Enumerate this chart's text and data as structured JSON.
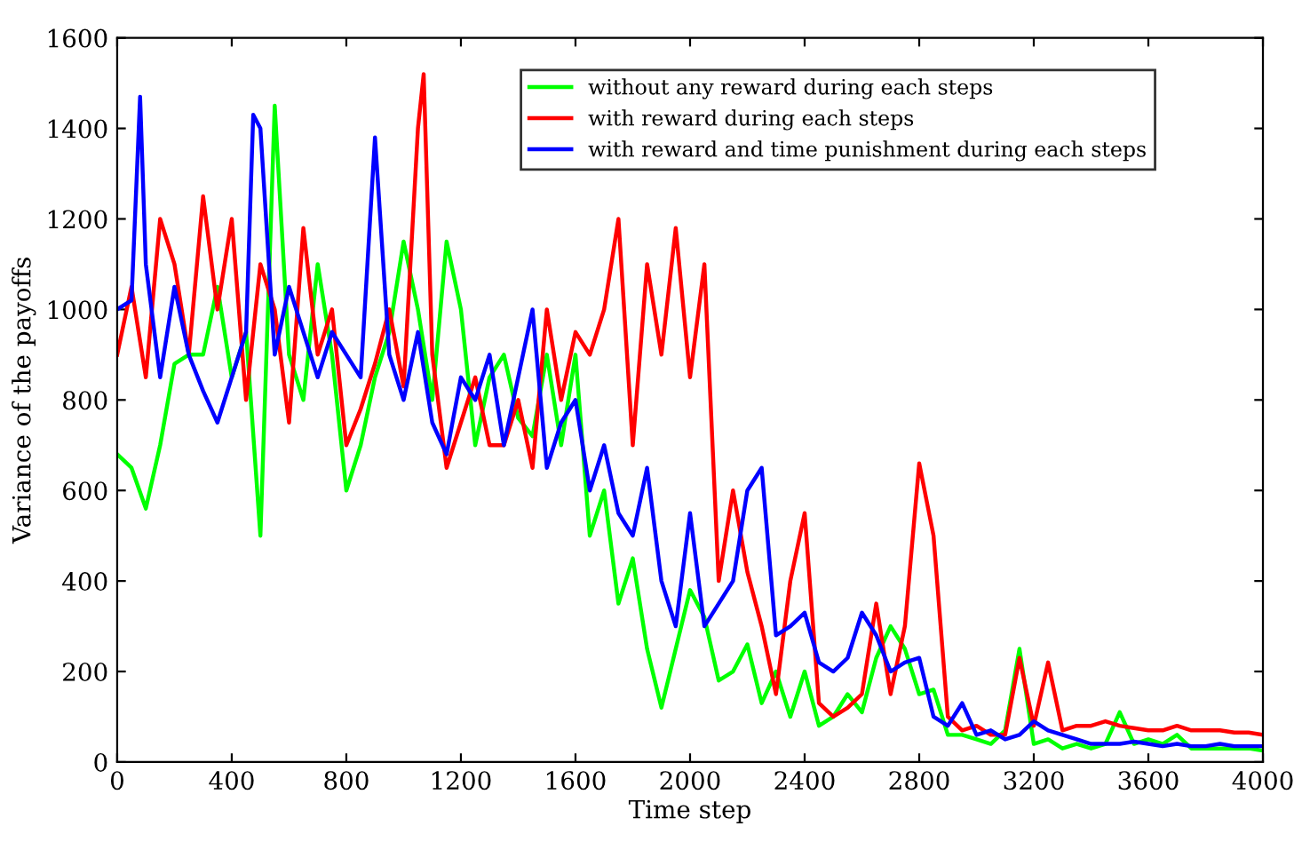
{
  "chart_data": {
    "type": "line",
    "xlabel": "Time step",
    "ylabel": "Variance of the payoffs",
    "xlim": [
      0,
      4000
    ],
    "xticks": [
      0,
      400,
      800,
      1200,
      1600,
      2000,
      2400,
      2800,
      3200,
      3600,
      4000
    ],
    "ylim": [
      0,
      1600
    ],
    "yticks": [
      0,
      200,
      400,
      600,
      800,
      1000,
      1200,
      1400,
      1600
    ],
    "grid": false,
    "legend": "top right",
    "marker": "none",
    "line_style": "solid",
    "series": [
      {
        "name": "without any reward during each steps",
        "color": "#00ff00",
        "x": [
          0,
          50,
          100,
          150,
          200,
          250,
          300,
          350,
          400,
          450,
          500,
          550,
          600,
          650,
          700,
          750,
          800,
          850,
          900,
          950,
          1000,
          1050,
          1100,
          1150,
          1200,
          1250,
          1300,
          1350,
          1400,
          1450,
          1500,
          1550,
          1600,
          1650,
          1700,
          1750,
          1800,
          1850,
          1900,
          1950,
          2000,
          2050,
          2100,
          2150,
          2200,
          2250,
          2300,
          2350,
          2400,
          2450,
          2500,
          2550,
          2600,
          2650,
          2700,
          2750,
          2800,
          2850,
          2900,
          2950,
          3000,
          3050,
          3100,
          3150,
          3200,
          3250,
          3300,
          3350,
          3400,
          3450,
          3500,
          3550,
          3600,
          3650,
          3700,
          3750,
          3800,
          3850,
          3900,
          3950,
          4000
        ],
        "values": [
          680,
          650,
          560,
          700,
          880,
          900,
          900,
          1050,
          850,
          950,
          500,
          1450,
          900,
          800,
          1100,
          900,
          600,
          700,
          850,
          950,
          1150,
          1000,
          800,
          1150,
          1000,
          700,
          850,
          900,
          760,
          720,
          900,
          700,
          900,
          500,
          600,
          350,
          450,
          250,
          120,
          250,
          380,
          320,
          180,
          200,
          260,
          130,
          200,
          100,
          200,
          80,
          100,
          150,
          110,
          230,
          300,
          250,
          150,
          160,
          60,
          60,
          50,
          40,
          70,
          250,
          40,
          50,
          30,
          40,
          30,
          40,
          110,
          40,
          50,
          40,
          60,
          30,
          30,
          30,
          30,
          30,
          25
        ]
      },
      {
        "name": "with reward during each steps",
        "color": "#ff0000",
        "x": [
          0,
          50,
          100,
          150,
          200,
          250,
          300,
          350,
          400,
          450,
          500,
          550,
          600,
          650,
          700,
          750,
          800,
          850,
          900,
          950,
          1000,
          1050,
          1070,
          1100,
          1150,
          1200,
          1250,
          1300,
          1350,
          1400,
          1450,
          1500,
          1550,
          1600,
          1650,
          1700,
          1750,
          1800,
          1850,
          1900,
          1950,
          2000,
          2050,
          2100,
          2150,
          2200,
          2250,
          2300,
          2350,
          2400,
          2450,
          2500,
          2550,
          2600,
          2650,
          2700,
          2750,
          2800,
          2850,
          2900,
          2950,
          3000,
          3050,
          3100,
          3150,
          3200,
          3250,
          3300,
          3350,
          3400,
          3450,
          3500,
          3550,
          3600,
          3650,
          3700,
          3750,
          3800,
          3850,
          3900,
          3950,
          4000
        ],
        "values": [
          900,
          1050,
          850,
          1200,
          1100,
          900,
          1250,
          1000,
          1200,
          800,
          1100,
          1000,
          750,
          1180,
          900,
          1000,
          700,
          780,
          880,
          1000,
          830,
          1400,
          1520,
          900,
          650,
          750,
          850,
          700,
          700,
          800,
          650,
          1000,
          800,
          950,
          900,
          1000,
          1200,
          700,
          1100,
          900,
          1180,
          850,
          1100,
          400,
          600,
          420,
          300,
          150,
          400,
          550,
          130,
          100,
          120,
          150,
          350,
          150,
          300,
          660,
          500,
          100,
          70,
          80,
          60,
          60,
          230,
          80,
          220,
          70,
          80,
          80,
          90,
          80,
          75,
          70,
          70,
          80,
          70,
          70,
          70,
          65,
          65,
          60
        ]
      },
      {
        "name": "with reward and time punishment during each steps",
        "color": "#0000ff",
        "x": [
          0,
          50,
          80,
          100,
          150,
          200,
          250,
          300,
          350,
          400,
          450,
          475,
          500,
          550,
          600,
          650,
          700,
          750,
          800,
          850,
          900,
          950,
          1000,
          1050,
          1100,
          1150,
          1200,
          1250,
          1300,
          1350,
          1400,
          1450,
          1500,
          1550,
          1600,
          1650,
          1700,
          1750,
          1800,
          1850,
          1900,
          1950,
          2000,
          2050,
          2100,
          2150,
          2200,
          2250,
          2300,
          2350,
          2400,
          2450,
          2500,
          2550,
          2600,
          2650,
          2700,
          2750,
          2800,
          2850,
          2900,
          2950,
          3000,
          3050,
          3100,
          3150,
          3200,
          3250,
          3300,
          3350,
          3400,
          3450,
          3500,
          3550,
          3600,
          3650,
          3700,
          3750,
          3800,
          3850,
          3900,
          3950,
          4000
        ],
        "values": [
          1000,
          1020,
          1470,
          1100,
          850,
          1050,
          900,
          820,
          750,
          850,
          950,
          1430,
          1400,
          900,
          1050,
          950,
          850,
          950,
          900,
          850,
          1380,
          900,
          800,
          950,
          750,
          680,
          850,
          800,
          900,
          700,
          850,
          1000,
          650,
          750,
          800,
          600,
          700,
          550,
          500,
          650,
          400,
          300,
          550,
          300,
          350,
          400,
          600,
          650,
          280,
          300,
          330,
          220,
          200,
          230,
          330,
          280,
          200,
          220,
          230,
          100,
          80,
          130,
          60,
          70,
          50,
          60,
          90,
          70,
          60,
          50,
          40,
          40,
          40,
          45,
          40,
          35,
          40,
          35,
          35,
          40,
          35,
          35,
          35
        ]
      }
    ]
  }
}
